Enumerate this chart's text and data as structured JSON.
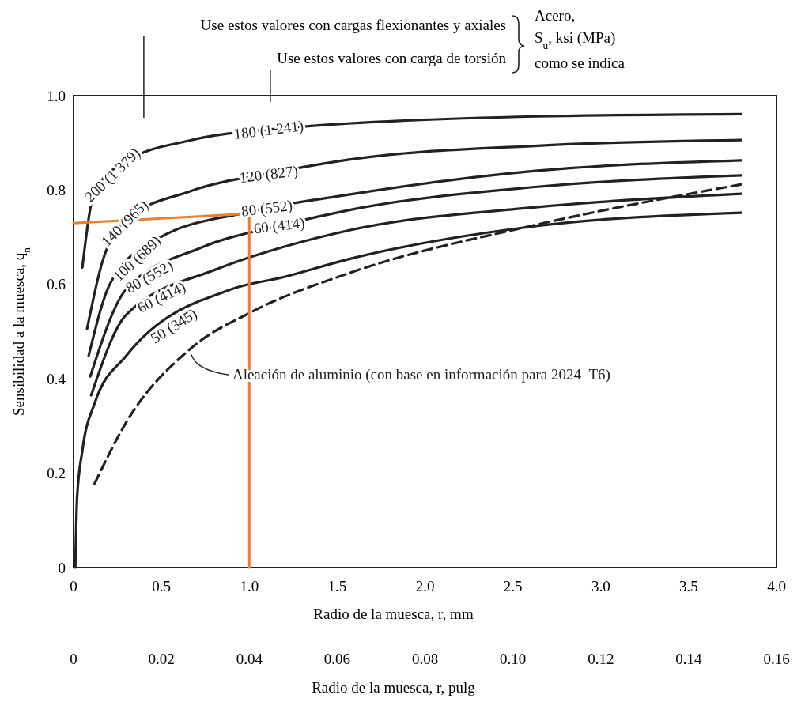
{
  "chart_data": {
    "type": "line",
    "xlabel": "Radio de la muesca, r, mm",
    "x2label": "Radio de la muesca, r, pulg",
    "ylabel": "Sensibilidad a la muesca, q$_{n}$",
    "xlim": [
      0,
      4
    ],
    "xticks": [
      0,
      0.5,
      {
        "value": 1,
        "label": "1.0"
      },
      1.5,
      {
        "value": 2,
        "label": "2.0"
      },
      2.5,
      {
        "value": 3,
        "label": "3.0"
      },
      3.5,
      {
        "value": 4,
        "label": "4.0"
      }
    ],
    "x2lim": [
      0,
      0.16
    ],
    "x2ticks": [
      0,
      0.02,
      0.04,
      0.06,
      0.08,
      {
        "value": 0.1,
        "label": "0.10"
      },
      0.12,
      0.14,
      0.16
    ],
    "ylim": [
      0,
      1
    ],
    "yticks": [
      0,
      0.2,
      0.4,
      0.6,
      0.8,
      {
        "value": 1,
        "label": "1.0"
      }
    ],
    "grid": false,
    "marker": "none",
    "series": [
      {
        "name": "200 (1 379)",
        "color": "#222222",
        "x": [
          0.05,
          0.12,
          0.3,
          0.66,
          1.2,
          1.56,
          2.64,
          3.8
        ],
        "values": [
          0.636,
          0.797,
          0.861,
          0.905,
          0.931,
          0.941,
          0.956,
          0.961
        ]
      },
      {
        "name": "140 (965)",
        "color": "#222222",
        "x": [
          0.077,
          0.16,
          0.3,
          0.66,
          1.2,
          1.56,
          2.64,
          3.8
        ],
        "values": [
          0.506,
          0.643,
          0.737,
          0.797,
          0.841,
          0.864,
          0.894,
          0.906
        ]
      },
      {
        "name": "100 (689)",
        "color": "#222222",
        "x": [
          0.086,
          0.21,
          0.48,
          1.0,
          1.56,
          2.64,
          3.8
        ],
        "values": [
          0.449,
          0.603,
          0.697,
          0.754,
          0.79,
          0.841,
          0.863
        ]
      },
      {
        "name": "80 (552)",
        "color": "#222222",
        "x": [
          0.095,
          0.3,
          0.72,
          1.2,
          1.56,
          2.64,
          3.8
        ],
        "values": [
          0.405,
          0.59,
          0.677,
          0.727,
          0.757,
          0.807,
          0.831
        ]
      },
      {
        "name": "60 (414)",
        "color": "#222222",
        "x": [
          0.1,
          0.3,
          0.82,
          1.2,
          1.56,
          2.64,
          3.8
        ],
        "values": [
          0.365,
          0.536,
          0.633,
          0.68,
          0.714,
          0.764,
          0.792
        ]
      },
      {
        "name": "50 (345)",
        "color": "#222222",
        "x": [
          0.01,
          0.02,
          0.05,
          0.12,
          0.3,
          0.9,
          1.2,
          1.56,
          2.64,
          3.8
        ],
        "values": [
          0,
          0.147,
          0.248,
          0.348,
          0.449,
          0.59,
          0.616,
          0.653,
          0.724,
          0.752
        ]
      },
      {
        "color": "#222222",
        "line_style": "dashed",
        "x": [
          0.12,
          0.3,
          0.66,
          1.02,
          1.56,
          2.64,
          3.8
        ],
        "values": [
          0.178,
          0.308,
          0.462,
          0.543,
          0.623,
          0.727,
          0.812
        ]
      },
      {
        "color": "#ed7d31",
        "x": [
          0,
          1,
          1
        ],
        "values": [
          0.73,
          0.75,
          0
        ]
      }
    ],
    "annotations": [
      {
        "text": "180 (1 241)",
        "x": 1.11,
        "y": 0.928
      },
      {
        "text": "120 (827)",
        "x": 1.11,
        "y": 0.834
      },
      {
        "text": "80 (552)",
        "x": 1.1,
        "y": 0.762
      },
      {
        "text": "60 (414)",
        "x": 1.17,
        "y": 0.725
      },
      {
        "text": "Aleación de aluminio (con base en información para 2024–T6)",
        "x": 0.67,
        "y": 0.455
      },
      "Use estos valores con cargas flexionantes y axiales",
      "Use estos valores con carga de torsión",
      "Acero,",
      "S$_{u}$, ksi (MPa)",
      "como se indica"
    ]
  }
}
